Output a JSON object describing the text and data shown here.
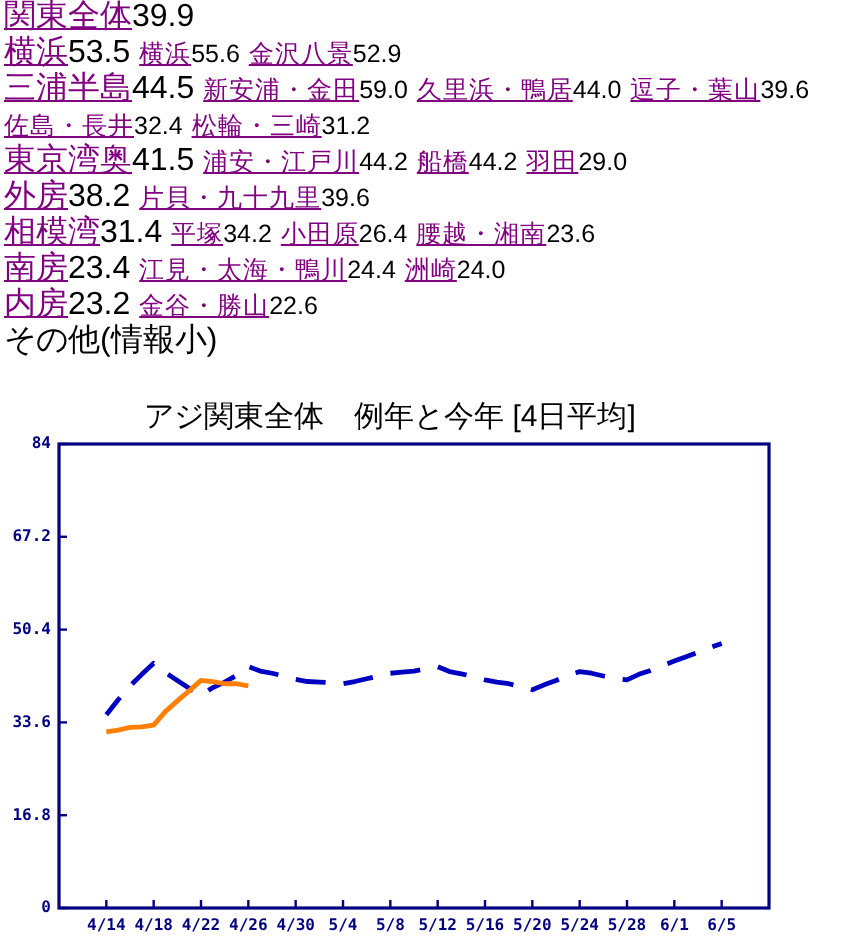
{
  "chart_data": {
    "type": "line",
    "title": "アジ関東全体　例年と今年 [4日平均]",
    "annotations": [
      "関東全体39.9",
      "横浜53.5 横浜55.6 金沢八景52.9",
      "三浦半島44.5 新安浦・金田59.0 久里浜・鴨居44.0 逗子・葉山39.6 佐島・長井32.4 松輪・三崎31.2",
      "東京湾奥41.5 浦安・江戸川44.2 船橋44.2 羽田29.0",
      "外房38.2 片貝・九十九里39.6",
      "相模湾31.4 平塚34.2 小田原26.4 腰越・湘南23.6",
      "南房23.4 江見・太海・鴨川24.4 洲崎24.0",
      "内房23.2 金谷・勝山22.6",
      "その他(情報小)"
    ],
    "series": [
      {
        "color": "#0000c0",
        "line_style": "dashed",
        "x": [
          "--04-14",
          "--04-15",
          "--04-16",
          "--04-17",
          "--04-18",
          "--04-19",
          "--04-20",
          "--04-21",
          "--04-22",
          "--04-23",
          "--04-24",
          "--04-25",
          "--04-26",
          "--04-27",
          "--04-28",
          "--04-29",
          "--04-30",
          "--05-01",
          "--05-02",
          "--05-03",
          "--05-04",
          "--05-05",
          "--05-06",
          "--05-07",
          "--05-08",
          "--05-09",
          "--05-10",
          "--05-11",
          "--05-12",
          "--05-13",
          "--05-14",
          "--05-15",
          "--05-16",
          "--05-17",
          "--05-18",
          "--05-19",
          "--05-20",
          "--05-21",
          "--05-22",
          "--05-23",
          "--05-24",
          "--05-25",
          "--05-26",
          "--05-27",
          "--05-28",
          "--05-29",
          "--05-30",
          "--05-31",
          "--06-01",
          "--06-02",
          "--06-03",
          "--06-04",
          "--06-05"
        ],
        "values": [
          35.0,
          37.7,
          40.2,
          42.3,
          44.3,
          42.6,
          41.2,
          39.8,
          38.5,
          39.9,
          40.9,
          42.1,
          43.7,
          42.9,
          42.5,
          42.0,
          41.4,
          41.0,
          40.9,
          40.8,
          40.6,
          41.0,
          41.5,
          42.0,
          42.5,
          42.7,
          42.9,
          43.3,
          43.7,
          42.8,
          42.4,
          41.9,
          41.3,
          40.9,
          40.6,
          40.1,
          39.5,
          40.4,
          41.2,
          42.1,
          42.8,
          42.5,
          42.0,
          41.5,
          41.3,
          42.3,
          43.0,
          43.9,
          44.7,
          45.5,
          46.3,
          47.1,
          47.9
        ]
      },
      {
        "color": "#ff8000",
        "line_style": "solid",
        "x": [
          "--04-14",
          "--04-15",
          "--04-16",
          "--04-17",
          "--04-18",
          "--04-19",
          "--04-20",
          "--04-21",
          "--04-22",
          "--04-23",
          "--04-24",
          "--04-25",
          "--04-26"
        ],
        "values": [
          31.9,
          32.2,
          32.7,
          32.8,
          33.1,
          35.6,
          37.5,
          39.3,
          41.2,
          41.0,
          40.6,
          40.6,
          40.2
        ]
      }
    ],
    "xlim": [
      "--04-10",
      "--06-09"
    ],
    "xticks": [
      {
        "value": "--04-14",
        "label": "4/14"
      },
      {
        "value": "--04-18",
        "label": "4/18"
      },
      {
        "value": "--04-22",
        "label": "4/22"
      },
      {
        "value": "--04-26",
        "label": "4/26"
      },
      {
        "value": "--04-30",
        "label": "4/30"
      },
      {
        "value": "--05-04",
        "label": "5/4"
      },
      {
        "value": "--05-08",
        "label": "5/8"
      },
      {
        "value": "--05-12",
        "label": "5/12"
      },
      {
        "value": "--05-16",
        "label": "5/16"
      },
      {
        "value": "--05-20",
        "label": "5/20"
      },
      {
        "value": "--05-24",
        "label": "5/24"
      },
      {
        "value": "--05-28",
        "label": "5/28"
      },
      {
        "value": "--06-01",
        "label": "6/1"
      },
      {
        "value": "--06-05",
        "label": "6/5"
      }
    ],
    "ylim": [
      0,
      84
    ],
    "yticks": [
      0,
      16.8,
      33.6,
      50.4,
      67.2,
      84
    ]
  }
}
